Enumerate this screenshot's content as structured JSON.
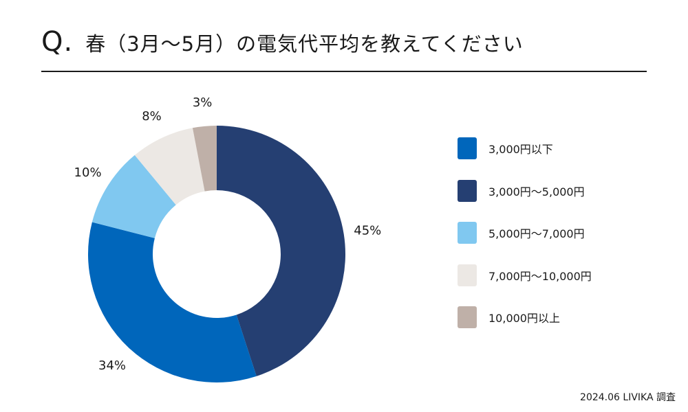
{
  "header": {
    "q_mark": "Q.",
    "question": "春（3月〜5月）の電気代平均を教えてください"
  },
  "source": "2024.06 LIVIKA 調査",
  "chart_data": {
    "type": "pie",
    "donut": true,
    "legend_position": "right",
    "categories": [
      "3,000円以下",
      "3,000円〜5,000円",
      "5,000円〜7,000円",
      "7,000円〜10,000円",
      "10,000円以上"
    ],
    "values": [
      34,
      45,
      10,
      8,
      3
    ],
    "labels": [
      "34%",
      "45%",
      "10%",
      "8%",
      "3%"
    ],
    "colors": [
      "#0066BB",
      "#253F72",
      "#80C8F0",
      "#ECE8E4",
      "#BFB0A8"
    ],
    "draw_order": [
      1,
      0,
      2,
      3,
      4
    ]
  }
}
